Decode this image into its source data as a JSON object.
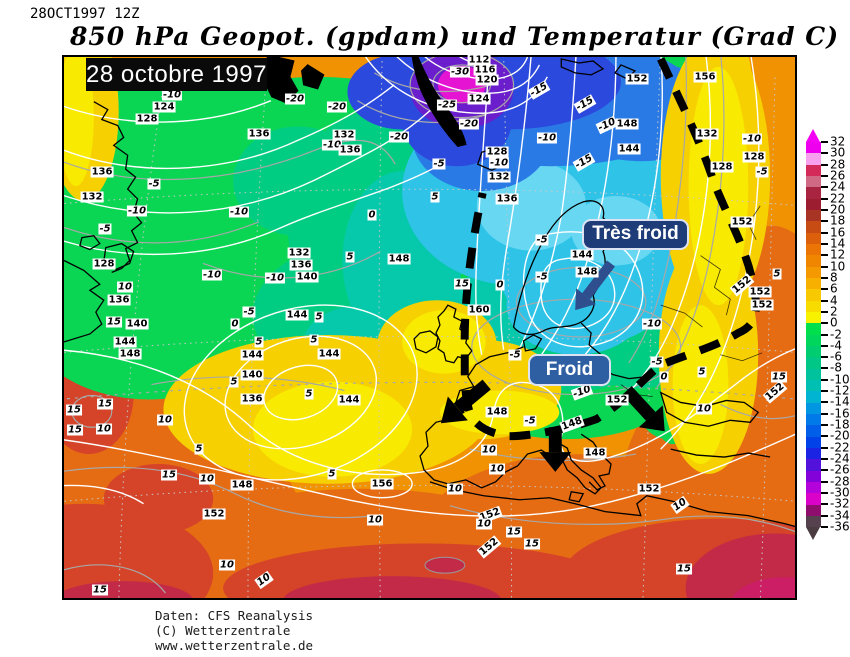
{
  "header": {
    "run_label": "28OCT1997 12Z",
    "title": "850 hPa Geopot. (gpdam) und  Temperatur (Grad C)"
  },
  "map": {
    "date_label": "28 octobre 1997",
    "annotations": [
      {
        "text": "Très froid",
        "color": "#1e3c78"
      },
      {
        "text": "Froid",
        "color": "#2e5fa3"
      }
    ],
    "contour_labels": [
      [
        "-10",
        108,
        38,
        "t"
      ],
      [
        "124",
        100,
        50,
        "g"
      ],
      [
        "128",
        83,
        62,
        "g"
      ],
      [
        "136",
        195,
        77,
        "g"
      ],
      [
        "-20",
        231,
        42,
        "t"
      ],
      [
        "-20",
        273,
        50,
        "t"
      ],
      [
        "132",
        280,
        78,
        "g"
      ],
      [
        "-10",
        268,
        88,
        "t"
      ],
      [
        "-20",
        335,
        80,
        "t"
      ],
      [
        "136",
        286,
        93,
        "g"
      ],
      [
        "136",
        38,
        115,
        "g"
      ],
      [
        "132",
        28,
        140,
        "g"
      ],
      [
        "-5",
        90,
        127,
        "t"
      ],
      [
        "-10",
        73,
        154,
        "t"
      ],
      [
        "-5",
        41,
        172,
        "t"
      ],
      [
        "-10",
        175,
        155,
        "t"
      ],
      [
        "-10",
        148,
        218,
        "t"
      ],
      [
        "-10",
        211,
        221,
        "t"
      ],
      [
        "128",
        40,
        207,
        "g"
      ],
      [
        "10",
        61,
        230,
        "t"
      ],
      [
        "136",
        55,
        243,
        "g"
      ],
      [
        "15",
        50,
        265,
        "t"
      ],
      [
        "140",
        73,
        267,
        "g"
      ],
      [
        "144",
        61,
        285,
        "g"
      ],
      [
        "148",
        66,
        297,
        "g"
      ],
      [
        "132",
        235,
        196,
        "g"
      ],
      [
        "136",
        237,
        208,
        "g"
      ],
      [
        "140",
        243,
        220,
        "g"
      ],
      [
        "5",
        286,
        200,
        "t"
      ],
      [
        "148",
        335,
        202,
        "g"
      ],
      [
        "0",
        308,
        158,
        "t"
      ],
      [
        "-5",
        185,
        255,
        "t"
      ],
      [
        "144",
        233,
        258,
        "g"
      ],
      [
        "5",
        255,
        260,
        "t"
      ],
      [
        "0",
        171,
        267,
        "t"
      ],
      [
        "112",
        415,
        3,
        "g"
      ],
      [
        "116",
        421,
        13,
        "g"
      ],
      [
        "120",
        423,
        23,
        "g"
      ],
      [
        "124",
        415,
        42,
        "g"
      ],
      [
        "-30",
        396,
        15,
        "t"
      ],
      [
        "-25",
        383,
        48,
        "t"
      ],
      [
        "-20",
        405,
        67,
        "t"
      ],
      [
        "-15",
        475,
        33,
        "t",
        -30
      ],
      [
        "-15",
        521,
        47,
        "t",
        -30
      ],
      [
        "-10",
        543,
        68,
        "t",
        -25
      ],
      [
        "148",
        563,
        67,
        "g"
      ],
      [
        "152",
        573,
        22,
        "g"
      ],
      [
        "156",
        641,
        20,
        "g"
      ],
      [
        "-10",
        483,
        81,
        "t"
      ],
      [
        "144",
        565,
        92,
        "g"
      ],
      [
        "128",
        433,
        95,
        "g"
      ],
      [
        "-10",
        435,
        106,
        "t"
      ],
      [
        "132",
        435,
        120,
        "g"
      ],
      [
        "136",
        443,
        142,
        "g"
      ],
      [
        "-5",
        375,
        107,
        "t"
      ],
      [
        "5",
        371,
        140,
        "t"
      ],
      [
        "-15",
        520,
        105,
        "t",
        -30
      ],
      [
        "132",
        643,
        77,
        "g"
      ],
      [
        "-10",
        688,
        82,
        "t"
      ],
      [
        "128",
        658,
        110,
        "g"
      ],
      [
        "128",
        690,
        100,
        "g"
      ],
      [
        "-5",
        698,
        115,
        "t"
      ],
      [
        "-5",
        478,
        183,
        "t"
      ],
      [
        "144",
        518,
        198,
        "g"
      ],
      [
        "148",
        523,
        215,
        "g"
      ],
      [
        "-5",
        478,
        220,
        "t"
      ],
      [
        "15",
        398,
        227,
        "t"
      ],
      [
        "0",
        436,
        228,
        "t"
      ],
      [
        "160",
        415,
        253,
        "g"
      ],
      [
        "-10",
        588,
        267,
        "t"
      ],
      [
        "152",
        678,
        165,
        "g"
      ],
      [
        "5",
        713,
        217,
        "t"
      ],
      [
        "152",
        678,
        228,
        "g",
        -40
      ],
      [
        "152",
        696,
        235,
        "g"
      ],
      [
        "152",
        698,
        248,
        "g"
      ],
      [
        "-5",
        451,
        298,
        "t"
      ],
      [
        "-10",
        518,
        335,
        "t",
        -20
      ],
      [
        "152",
        553,
        343,
        "g"
      ],
      [
        "-5",
        593,
        305,
        "t"
      ],
      [
        "0",
        600,
        320,
        "t"
      ],
      [
        "5",
        638,
        315,
        "t"
      ],
      [
        "10",
        640,
        352,
        "t"
      ],
      [
        "15",
        715,
        320,
        "t"
      ],
      [
        "152",
        711,
        335,
        "g",
        -40
      ],
      [
        "148",
        433,
        355,
        "g"
      ],
      [
        "-5",
        466,
        364,
        "t"
      ],
      [
        "148",
        508,
        367,
        "g",
        -20
      ],
      [
        "10",
        425,
        393,
        "t"
      ],
      [
        "148",
        531,
        396,
        "g"
      ],
      [
        "10",
        433,
        412,
        "t"
      ],
      [
        "10",
        391,
        432,
        "t"
      ],
      [
        "152",
        585,
        432,
        "g"
      ],
      [
        "10",
        616,
        448,
        "t",
        -35
      ],
      [
        "152",
        426,
        458,
        "g",
        -20
      ],
      [
        "10",
        420,
        467,
        "t"
      ],
      [
        "15",
        450,
        475,
        "t"
      ],
      [
        "15",
        468,
        487,
        "t"
      ],
      [
        "152",
        425,
        490,
        "g",
        -40
      ],
      [
        "15",
        620,
        512,
        "t"
      ],
      [
        "144",
        188,
        298,
        "g"
      ],
      [
        "140",
        188,
        318,
        "g"
      ],
      [
        "136",
        188,
        342,
        "g"
      ],
      [
        "5",
        170,
        325,
        "t"
      ],
      [
        "5",
        195,
        285,
        "t"
      ],
      [
        "5",
        250,
        283,
        "t"
      ],
      [
        "144",
        265,
        297,
        "g"
      ],
      [
        "144",
        285,
        343,
        "g"
      ],
      [
        "5",
        245,
        337,
        "t"
      ],
      [
        "15",
        10,
        353,
        "t"
      ],
      [
        "15",
        41,
        347,
        "t"
      ],
      [
        "15",
        11,
        373,
        "t"
      ],
      [
        "10",
        40,
        372,
        "t"
      ],
      [
        "10",
        101,
        363,
        "t"
      ],
      [
        "5",
        135,
        392,
        "t"
      ],
      [
        "15",
        105,
        418,
        "t"
      ],
      [
        "10",
        143,
        422,
        "t"
      ],
      [
        "148",
        178,
        428,
        "g"
      ],
      [
        "5",
        268,
        417,
        "t"
      ],
      [
        "156",
        318,
        427,
        "g"
      ],
      [
        "152",
        150,
        457,
        "g"
      ],
      [
        "10",
        311,
        463,
        "t"
      ],
      [
        "10",
        163,
        508,
        "t"
      ],
      [
        "10",
        200,
        523,
        "t",
        -35
      ],
      [
        "15",
        36,
        533,
        "t"
      ]
    ]
  },
  "colorbar": {
    "ticks": [
      32,
      30,
      28,
      26,
      24,
      22,
      20,
      18,
      16,
      14,
      12,
      10,
      8,
      6,
      4,
      2,
      0,
      -2,
      -4,
      -6,
      -8,
      -10,
      -12,
      -14,
      -16,
      -18,
      -20,
      -22,
      -24,
      -26,
      -28,
      -30,
      -32,
      -34,
      -36
    ],
    "colors": [
      "#ee00ee",
      "#f6a0ee",
      "#d42a5a",
      "#d06a84",
      "#a82440",
      "#9c1c30",
      "#a83424",
      "#c64c14",
      "#dc600c",
      "#ec7404",
      "#f08600",
      "#f49a00",
      "#f8b000",
      "#f8c800",
      "#f8dc00",
      "#f8f200",
      "#00e04c",
      "#00d65c",
      "#00cc70",
      "#00c686",
      "#00c29c",
      "#00c0b4",
      "#00b4d2",
      "#0096e2",
      "#007ae8",
      "#005ee8",
      "#0042e8",
      "#1c24e4",
      "#5212dc",
      "#8402da",
      "#b402da",
      "#da02c8",
      "#8e0e6e",
      "#55424e"
    ],
    "arrow_top_color": "#f400f4",
    "arrow_bottom_color": "#4a3c40"
  },
  "attribution": {
    "lines": [
      "Daten: CFS Reanalysis",
      "(C) Wetterzentrale",
      "www.wetterzentrale.de"
    ]
  }
}
